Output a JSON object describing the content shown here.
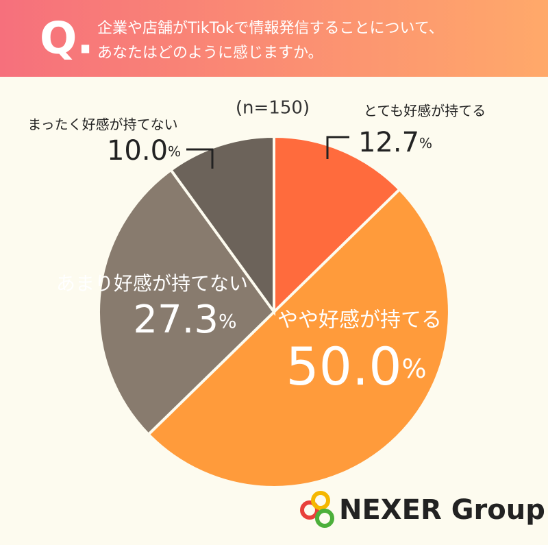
{
  "header": {
    "mark": "Q.",
    "question_lines": [
      "企業や店舗がTikTokで情報発信することについて、",
      "あなたはどのように感じますか。"
    ]
  },
  "chart_data": {
    "type": "pie",
    "subtitle": "(n=150)",
    "categories": [
      "とても好感が持てる",
      "やや好感が持てる",
      "あまり好感が持てない",
      "まったく好感が持てない"
    ],
    "values": [
      12.7,
      50.0,
      27.3,
      10.0
    ],
    "value_labels": [
      "12.7%",
      "50.0%",
      "27.3%",
      "10.0%"
    ],
    "colors": [
      "#ff6b3d",
      "#ff9b3b",
      "#887b6e",
      "#6c635a"
    ]
  },
  "logo": "NEXER Group"
}
